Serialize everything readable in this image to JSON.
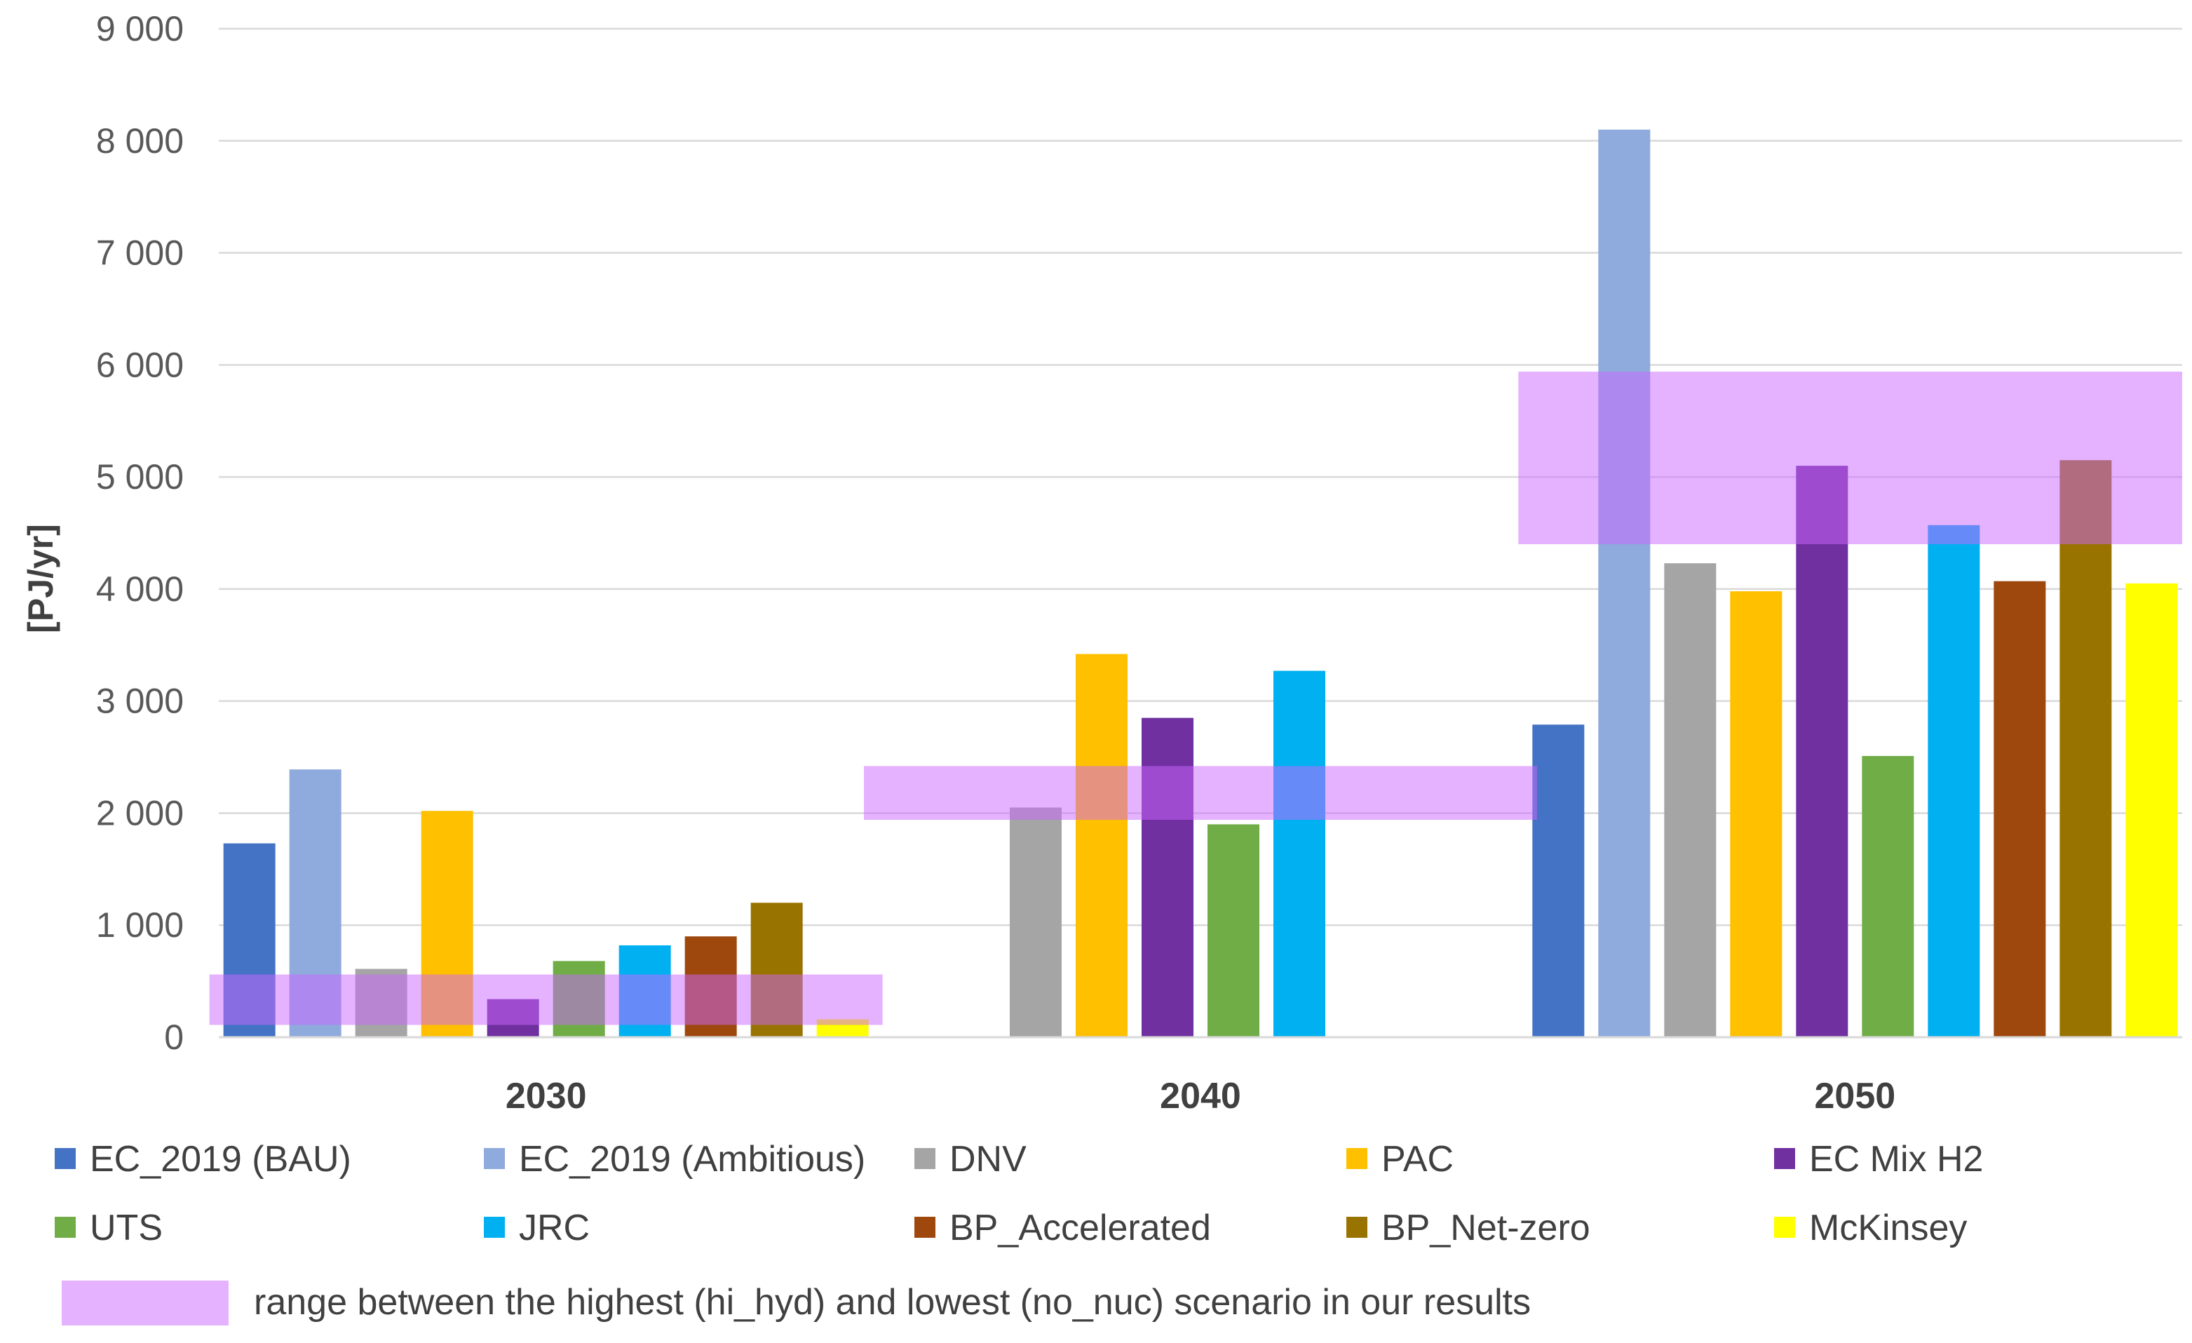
{
  "chart_data": {
    "type": "bar",
    "ylabel": "[PJ/yr]",
    "ylim": [
      0,
      9000
    ],
    "yticks": [
      0,
      1000,
      2000,
      3000,
      4000,
      5000,
      6000,
      7000,
      8000,
      9000
    ],
    "ytick_labels": [
      "0",
      "1 000",
      "2 000",
      "3 000",
      "4 000",
      "5 000",
      "6 000",
      "7 000",
      "8 000",
      "9 000"
    ],
    "grid": true,
    "legend_position": "bottom",
    "categories": [
      "2030",
      "2040",
      "2050"
    ],
    "series": [
      {
        "name": "EC_2019 (BAU)",
        "color": "#4472C4",
        "values": [
          1730,
          null,
          2790
        ]
      },
      {
        "name": "EC_2019 (Ambitious)",
        "color": "#8FAADC",
        "values": [
          2390,
          null,
          8100
        ]
      },
      {
        "name": "DNV",
        "color": "#A5A5A5",
        "values": [
          610,
          2050,
          4230
        ]
      },
      {
        "name": "PAC",
        "color": "#FFC000",
        "values": [
          2020,
          3420,
          3980
        ]
      },
      {
        "name": "EC Mix H2",
        "color": "#7030A0",
        "values": [
          340,
          2850,
          5100
        ]
      },
      {
        "name": "UTS",
        "color": "#70AD47",
        "values": [
          680,
          1900,
          2510
        ]
      },
      {
        "name": "JRC",
        "color": "#00B0F0",
        "values": [
          820,
          3270,
          4570
        ]
      },
      {
        "name": "BP_Accelerated",
        "color": "#9E480E",
        "values": [
          900,
          null,
          4070
        ]
      },
      {
        "name": "BP_Net-zero",
        "color": "#997300",
        "values": [
          1200,
          null,
          5150
        ]
      },
      {
        "name": "McKinsey",
        "color": "#FFFF00",
        "values": [
          160,
          null,
          4050
        ]
      }
    ],
    "ranges": [
      {
        "category": "2030",
        "low": 110,
        "high": 560
      },
      {
        "category": "2040",
        "low": 1940,
        "high": 2420
      },
      {
        "category": "2050",
        "low": 4400,
        "high": 5940
      }
    ],
    "range_label": "range between the highest (hi_hyd) and lowest (no_nuc) scenario in our results",
    "range_color": "#CC66FF"
  }
}
